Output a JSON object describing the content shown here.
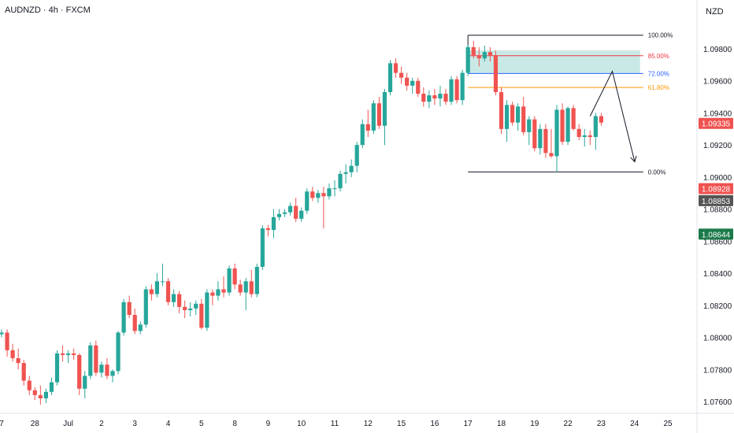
{
  "header": {
    "symbol_title": "AUDNZD · 4h · FXCM",
    "currency": "NZD"
  },
  "colors": {
    "up": "#26a69a",
    "down": "#ef5350",
    "zone": "#b2dfdb",
    "fib_100": "#131722",
    "fib_85": "#f23645",
    "fib_72": "#2962ff",
    "fib_618": "#ff9800",
    "fib_0": "#131722",
    "grid": "#e0e3eb",
    "text": "#131722"
  },
  "chart_data": {
    "type": "candlestick",
    "title": "AUDNZD · 4h · FXCM",
    "ylim": [
      1.075,
      1.0995
    ],
    "yticks": [
      "1.09800",
      "1.09600",
      "1.09400",
      "1.09200",
      "1.09000",
      "1.08800",
      "1.08600",
      "1.08400",
      "1.08200",
      "1.08000",
      "1.07800",
      "1.07600"
    ],
    "ytick_values": [
      1.098,
      1.096,
      1.094,
      1.092,
      1.09,
      1.088,
      1.086,
      1.084,
      1.082,
      1.08,
      1.078,
      1.076
    ],
    "xticks": [
      "7",
      "28",
      "Jul",
      "2",
      "3",
      "4",
      "5",
      "8",
      "9",
      "10",
      "11",
      "12",
      "15",
      "16",
      "17",
      "18",
      "19",
      "22",
      "23",
      "24",
      "25"
    ],
    "xtick_index": [
      0,
      6,
      12,
      18,
      24,
      30,
      36,
      42,
      48,
      54,
      60,
      66,
      72,
      78,
      84,
      90,
      96,
      102,
      108,
      114,
      120
    ],
    "price_labels": [
      {
        "text": "1.09335",
        "value": 1.09335,
        "bg": "#ef5350",
        "fg": "#ffffff"
      },
      {
        "text": "1.08928",
        "value": 1.08928,
        "bg": "#ef5350",
        "fg": "#ffffff"
      },
      {
        "text": "1.08853",
        "value": 1.08853,
        "bg": "#555555",
        "fg": "#ffffff"
      },
      {
        "text": "1.08644",
        "value": 1.08644,
        "bg": "#1b7a4a",
        "fg": "#ffffff"
      }
    ],
    "fibonacci": {
      "start_index": 84,
      "end_index": 115,
      "levels": [
        {
          "label": "100.00%",
          "value": 1.09885,
          "color": "#131722"
        },
        {
          "label": "85.00%",
          "value": 1.09757,
          "color": "#f23645"
        },
        {
          "label": "72.00%",
          "value": 1.09646,
          "color": "#2962ff"
        },
        {
          "label": "61.80%",
          "value": 1.09559,
          "color": "#ff9800"
        },
        {
          "label": "0.00%",
          "value": 1.09032,
          "color": "#131722"
        }
      ],
      "zone": {
        "top": 1.0979,
        "bottom": 1.09646
      }
    },
    "projection": [
      {
        "index": 106,
        "value": 1.0938
      },
      {
        "index": 110,
        "value": 1.0966
      },
      {
        "index": 114,
        "value": 1.091
      }
    ],
    "candles": [
      [
        1.0802,
        1.0805,
        1.08,
        1.0803
      ],
      [
        1.0803,
        1.0805,
        1.0788,
        1.0792
      ],
      [
        1.0792,
        1.0796,
        1.0785,
        1.0787
      ],
      [
        1.0787,
        1.0793,
        1.078,
        1.0784
      ],
      [
        1.0784,
        1.0786,
        1.077,
        1.0773
      ],
      [
        1.0773,
        1.0776,
        1.0764,
        1.0767
      ],
      [
        1.0767,
        1.0769,
        1.0761,
        1.0764
      ],
      [
        1.0764,
        1.077,
        1.0758,
        1.0762
      ],
      [
        1.0762,
        1.0768,
        1.0759,
        1.0766
      ],
      [
        1.0766,
        1.0775,
        1.0764,
        1.0772
      ],
      [
        1.0772,
        1.0792,
        1.077,
        1.079
      ],
      [
        1.079,
        1.0795,
        1.0785,
        1.0789
      ],
      [
        1.0789,
        1.0792,
        1.0784,
        1.079
      ],
      [
        1.079,
        1.0793,
        1.0786,
        1.0789
      ],
      [
        1.0789,
        1.079,
        1.0764,
        1.0768
      ],
      [
        1.0768,
        1.0779,
        1.0762,
        1.0776
      ],
      [
        1.0776,
        1.0797,
        1.0774,
        1.0795
      ],
      [
        1.0795,
        1.0798,
        1.0776,
        1.0778
      ],
      [
        1.0778,
        1.0785,
        1.0775,
        1.0783
      ],
      [
        1.0783,
        1.0787,
        1.0774,
        1.0776
      ],
      [
        1.0776,
        1.078,
        1.0772,
        1.0779
      ],
      [
        1.0779,
        1.0804,
        1.0777,
        1.0803
      ],
      [
        1.0803,
        1.0824,
        1.0801,
        1.0822
      ],
      [
        1.0822,
        1.0826,
        1.0812,
        1.0814
      ],
      [
        1.0814,
        1.0818,
        1.0802,
        1.0804
      ],
      [
        1.0804,
        1.081,
        1.0802,
        1.0808
      ],
      [
        1.0808,
        1.0832,
        1.0806,
        1.083
      ],
      [
        1.083,
        1.0833,
        1.0823,
        1.0827
      ],
      [
        1.0827,
        1.084,
        1.0825,
        1.0835
      ],
      [
        1.0835,
        1.0846,
        1.0832,
        1.0835
      ],
      [
        1.0835,
        1.0837,
        1.082,
        1.0822
      ],
      [
        1.0822,
        1.083,
        1.0819,
        1.0827
      ],
      [
        1.0827,
        1.0829,
        1.0815,
        1.0819
      ],
      [
        1.0819,
        1.0823,
        1.0812,
        1.0817
      ],
      [
        1.0817,
        1.0822,
        1.0813,
        1.0818
      ],
      [
        1.0818,
        1.0823,
        1.0814,
        1.0821
      ],
      [
        1.0821,
        1.0824,
        1.0805,
        1.0806
      ],
      [
        1.0806,
        1.083,
        1.0804,
        1.0828
      ],
      [
        1.0828,
        1.083,
        1.082,
        1.0826
      ],
      [
        1.0826,
        1.0835,
        1.0823,
        1.083
      ],
      [
        1.083,
        1.0838,
        1.0825,
        1.0828
      ],
      [
        1.0828,
        1.0845,
        1.0826,
        1.0843
      ],
      [
        1.0843,
        1.0846,
        1.083,
        1.0833
      ],
      [
        1.0833,
        1.0836,
        1.0826,
        1.0828
      ],
      [
        1.0828,
        1.0837,
        1.0817,
        1.0835
      ],
      [
        1.0835,
        1.0842,
        1.0825,
        1.0827
      ],
      [
        1.0827,
        1.0846,
        1.0825,
        1.0844
      ],
      [
        1.0844,
        1.087,
        1.0842,
        1.0868
      ],
      [
        1.0868,
        1.087,
        1.0863,
        1.0867
      ],
      [
        1.0867,
        1.088,
        1.0862,
        1.0875
      ],
      [
        1.0875,
        1.088,
        1.0873,
        1.0877
      ],
      [
        1.0877,
        1.088,
        1.0875,
        1.0878
      ],
      [
        1.0878,
        1.0884,
        1.0876,
        1.0882
      ],
      [
        1.0882,
        1.0887,
        1.0872,
        1.0874
      ],
      [
        1.0874,
        1.0881,
        1.0872,
        1.0879
      ],
      [
        1.0879,
        1.0893,
        1.0877,
        1.0891
      ],
      [
        1.0891,
        1.0894,
        1.0885,
        1.0887
      ],
      [
        1.0887,
        1.0892,
        1.0884,
        1.089
      ],
      [
        1.089,
        1.0894,
        1.0868,
        1.0888
      ],
      [
        1.0888,
        1.0896,
        1.0886,
        1.0893
      ],
      [
        1.0893,
        1.0898,
        1.0888,
        1.0893
      ],
      [
        1.0893,
        1.0904,
        1.0891,
        1.0902
      ],
      [
        1.0902,
        1.0908,
        1.0896,
        1.0903
      ],
      [
        1.0903,
        1.0911,
        1.09,
        1.0907
      ],
      [
        1.0907,
        1.0922,
        1.0903,
        1.092
      ],
      [
        1.092,
        1.0936,
        1.0918,
        1.0933
      ],
      [
        1.0933,
        1.0942,
        1.0925,
        1.0929
      ],
      [
        1.0929,
        1.0948,
        1.0927,
        1.0946
      ],
      [
        1.0946,
        1.095,
        1.093,
        1.0932
      ],
      [
        1.0932,
        1.0955,
        1.092,
        1.0953
      ],
      [
        1.0953,
        1.0973,
        1.0951,
        1.0971
      ],
      [
        1.0971,
        1.0974,
        1.0962,
        1.0965
      ],
      [
        1.0965,
        1.0969,
        1.0958,
        1.0962
      ],
      [
        1.0962,
        1.0965,
        1.0954,
        1.0957
      ],
      [
        1.0957,
        1.0962,
        1.0952,
        1.096
      ],
      [
        1.096,
        1.0962,
        1.095,
        1.0952
      ],
      [
        1.0952,
        1.0956,
        1.0944,
        1.0947
      ],
      [
        1.0947,
        1.0954,
        1.0943,
        1.0951
      ],
      [
        1.0951,
        1.0955,
        1.0945,
        1.0949
      ],
      [
        1.0949,
        1.0957,
        1.0944,
        1.0952
      ],
      [
        1.0952,
        1.0955,
        1.0945,
        1.0947
      ],
      [
        1.0947,
        1.0963,
        1.0945,
        1.0961
      ],
      [
        1.0961,
        1.0963,
        1.0946,
        1.0948
      ],
      [
        1.0948,
        1.0967,
        1.0945,
        1.0965
      ],
      [
        1.0965,
        1.0983,
        1.0963,
        1.0981
      ],
      [
        1.0981,
        1.0985,
        1.0974,
        1.0976
      ],
      [
        1.0976,
        1.0981,
        1.0969,
        1.0974
      ],
      [
        1.0974,
        1.0982,
        1.0972,
        1.0978
      ],
      [
        1.0978,
        1.0981,
        1.0972,
        1.0976
      ],
      [
        1.0976,
        1.0979,
        1.0951,
        1.0953
      ],
      [
        1.0953,
        1.0956,
        1.0927,
        1.093
      ],
      [
        1.093,
        1.0948,
        1.0922,
        1.0945
      ],
      [
        1.0945,
        1.0947,
        1.0932,
        1.0934
      ],
      [
        1.0934,
        1.0946,
        1.0929,
        1.0944
      ],
      [
        1.0944,
        1.095,
        1.0926,
        1.0928
      ],
      [
        1.0928,
        1.0938,
        1.092,
        1.0936
      ],
      [
        1.0936,
        1.0938,
        1.0916,
        1.0918
      ],
      [
        1.0918,
        1.0933,
        1.0914,
        1.093
      ],
      [
        1.093,
        1.0933,
        1.0912,
        1.0915
      ],
      [
        1.0915,
        1.093,
        1.0912,
        1.0913
      ],
      [
        1.0913,
        1.0945,
        1.0903,
        1.0942
      ],
      [
        1.0942,
        1.0946,
        1.092,
        1.0922
      ],
      [
        1.0922,
        1.0944,
        1.092,
        1.0943
      ],
      [
        1.0943,
        1.0945,
        1.0929,
        1.093
      ],
      [
        1.093,
        1.0933,
        1.0923,
        1.0925
      ],
      [
        1.0925,
        1.093,
        1.0919,
        1.0926
      ],
      [
        1.0926,
        1.0929,
        1.092,
        1.0925
      ],
      [
        1.0925,
        1.094,
        1.0917,
        1.0938
      ],
      [
        1.0938,
        1.094,
        1.0932,
        1.0934
      ]
    ]
  }
}
